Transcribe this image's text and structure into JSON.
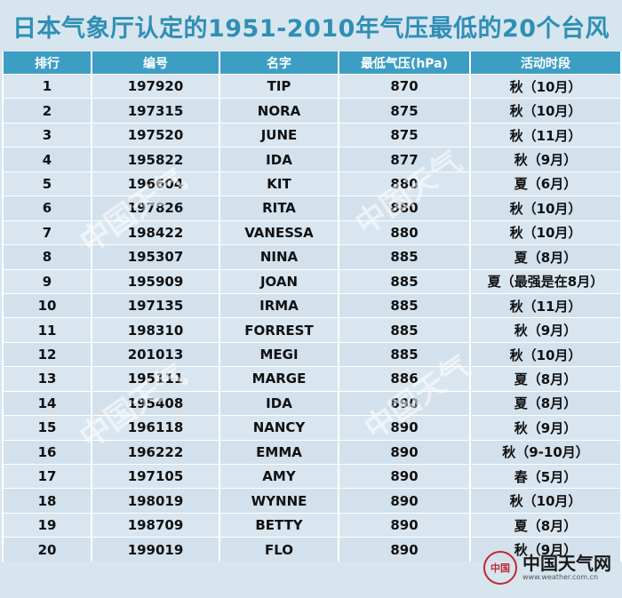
{
  "title": "日本气象厅认定的1951-2010年气压最低的20个台风",
  "table": {
    "headers": [
      "排行",
      "编号",
      "名字",
      "最低气压(hPa)",
      "活动时段"
    ],
    "rows": [
      {
        "rank": "1",
        "id": "197920",
        "name": "TIP",
        "pressure": "870",
        "period": "秋（10月）"
      },
      {
        "rank": "2",
        "id": "197315",
        "name": "NORA",
        "pressure": "875",
        "period": "秋（10月）"
      },
      {
        "rank": "3",
        "id": "197520",
        "name": "JUNE",
        "pressure": "875",
        "period": "秋（11月）"
      },
      {
        "rank": "4",
        "id": "195822",
        "name": "IDA",
        "pressure": "877",
        "period": "秋（9月）"
      },
      {
        "rank": "5",
        "id": "196604",
        "name": "KIT",
        "pressure": "880",
        "period": "夏（6月）"
      },
      {
        "rank": "6",
        "id": "197826",
        "name": "RITA",
        "pressure": "880",
        "period": "秋（10月）"
      },
      {
        "rank": "7",
        "id": "198422",
        "name": "VANESSA",
        "pressure": "880",
        "period": "秋（10月）"
      },
      {
        "rank": "8",
        "id": "195307",
        "name": "NINA",
        "pressure": "885",
        "period": "夏（8月）"
      },
      {
        "rank": "9",
        "id": "195909",
        "name": "JOAN",
        "pressure": "885",
        "period": "夏（最强是在8月）"
      },
      {
        "rank": "10",
        "id": "197135",
        "name": "IRMA",
        "pressure": "885",
        "period": "秋（11月）"
      },
      {
        "rank": "11",
        "id": "198310",
        "name": "FORREST",
        "pressure": "885",
        "period": "秋（9月）"
      },
      {
        "rank": "12",
        "id": "201013",
        "name": "MEGI",
        "pressure": "885",
        "period": "秋（10月）"
      },
      {
        "rank": "13",
        "id": "195111",
        "name": "MARGE",
        "pressure": "886",
        "period": "夏（8月）"
      },
      {
        "rank": "14",
        "id": "195408",
        "name": "IDA",
        "pressure": "890",
        "period": "夏（8月）"
      },
      {
        "rank": "15",
        "id": "196118",
        "name": "NANCY",
        "pressure": "890",
        "period": "秋（9月）"
      },
      {
        "rank": "16",
        "id": "196222",
        "name": "EMMA",
        "pressure": "890",
        "period": "秋（9-10月）"
      },
      {
        "rank": "17",
        "id": "197105",
        "name": "AMY",
        "pressure": "890",
        "period": "春（5月）"
      },
      {
        "rank": "18",
        "id": "198019",
        "name": "WYNNE",
        "pressure": "890",
        "period": "秋（10月）"
      },
      {
        "rank": "19",
        "id": "198709",
        "name": "BETTY",
        "pressure": "890",
        "period": "夏（8月）"
      },
      {
        "rank": "20",
        "id": "199019",
        "name": "FLO",
        "pressure": "890",
        "period": "秋（9月）"
      }
    ]
  },
  "watermark": {
    "text": "中国天气",
    "url": "www.weather.com.cn"
  },
  "logo": {
    "name": "中国天气网",
    "url": "www.weather.com.cn",
    "seal_text": "中国",
    "seal_color": "#c0282d"
  },
  "colors": {
    "title": "#2f8fb5",
    "header_bg": "#3d9ec4",
    "row_bg": "#d9e6f0"
  }
}
